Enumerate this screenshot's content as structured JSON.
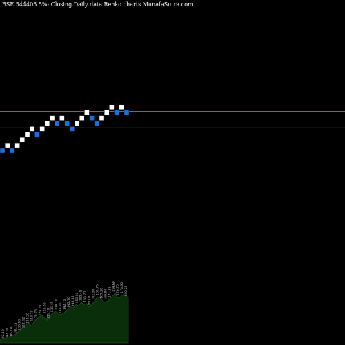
{
  "chart_data": {
    "type": "renko",
    "title": "BSE 544405 5%- Closing Daily data Renko charts MunafaSutra.com",
    "colors": {
      "background": "#000000",
      "up_brick": "#ffffff",
      "down_brick": "#1e6fd9",
      "reference_line": "#c86414",
      "volume_area": "#0a2e0a",
      "volume_edge": "#1f6a1f"
    },
    "bricks": [
      {
        "index": 0,
        "level": 0,
        "direction": "down"
      },
      {
        "index": 1,
        "level": 1,
        "direction": "up"
      },
      {
        "index": 2,
        "level": 0,
        "direction": "down"
      },
      {
        "index": 3,
        "level": 1,
        "direction": "up"
      },
      {
        "index": 4,
        "level": 2,
        "direction": "up"
      },
      {
        "index": 5,
        "level": 3,
        "direction": "up"
      },
      {
        "index": 6,
        "level": 4,
        "direction": "up"
      },
      {
        "index": 7,
        "level": 3,
        "direction": "down"
      },
      {
        "index": 8,
        "level": 4,
        "direction": "up"
      },
      {
        "index": 9,
        "level": 5,
        "direction": "up"
      },
      {
        "index": 10,
        "level": 6,
        "direction": "up"
      },
      {
        "index": 11,
        "level": 5,
        "direction": "down"
      },
      {
        "index": 12,
        "level": 6,
        "direction": "up"
      },
      {
        "index": 13,
        "level": 5,
        "direction": "down"
      },
      {
        "index": 14,
        "level": 4,
        "direction": "down"
      },
      {
        "index": 15,
        "level": 5,
        "direction": "up"
      },
      {
        "index": 16,
        "level": 6,
        "direction": "up"
      },
      {
        "index": 17,
        "level": 7,
        "direction": "up"
      },
      {
        "index": 18,
        "level": 6,
        "direction": "down"
      },
      {
        "index": 19,
        "level": 5,
        "direction": "down"
      },
      {
        "index": 20,
        "level": 6,
        "direction": "up"
      },
      {
        "index": 21,
        "level": 7,
        "direction": "up"
      },
      {
        "index": 22,
        "level": 8,
        "direction": "up"
      },
      {
        "index": 23,
        "level": 7,
        "direction": "down"
      },
      {
        "index": 24,
        "level": 8,
        "direction": "up"
      },
      {
        "index": 25,
        "level": 7,
        "direction": "down"
      }
    ],
    "reference_lines": [
      7.65,
      4.65
    ],
    "volume_labels": [
      "92.10",
      "92.20",
      "95.10",
      "100.15",
      "105.10",
      "111.12",
      "114.20",
      "118.75",
      "120.75",
      "125.70",
      "128.35",
      "131.10",
      "135.45",
      "138.10",
      "140.85",
      "142.15",
      "145.70",
      "148.35",
      "150.00",
      "153.45",
      "155.20",
      "160.10",
      "162.50",
      "165.75",
      "167.20",
      "169.80",
      "171.35",
      "174.60",
      "176.70",
      "178.90",
      "180.25"
    ],
    "volume_values": [
      3,
      4,
      4,
      5,
      6,
      7,
      8,
      10,
      12,
      14,
      16,
      18,
      15,
      19,
      21,
      23,
      25,
      22,
      20,
      24,
      26,
      28,
      27,
      25,
      26,
      28,
      30,
      32,
      31,
      34,
      33,
      36,
      34,
      35,
      32,
      34,
      37,
      40,
      41,
      38,
      36,
      37,
      39,
      42,
      44,
      40,
      41,
      43,
      42,
      40
    ],
    "xlabel": "",
    "ylabel": ""
  }
}
